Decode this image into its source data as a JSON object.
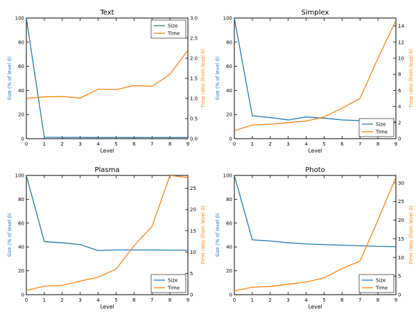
{
  "chart_data": [
    {
      "type": "line",
      "title": "Text",
      "xlabel": "Level",
      "ylabel": "Size (% of level 0)",
      "y2label": "Time ratio (from level 0)",
      "x": [
        0,
        1,
        2,
        3,
        4,
        5,
        6,
        7,
        8,
        9
      ],
      "xlim": [
        0,
        9
      ],
      "ylim": [
        0,
        100
      ],
      "y2lim": [
        0,
        3.0
      ],
      "xticks": [
        "0",
        "1",
        "2",
        "3",
        "4",
        "5",
        "6",
        "7",
        "8",
        "9"
      ],
      "yticks": [
        "0",
        "20",
        "40",
        "60",
        "80",
        "100"
      ],
      "y2ticks": [
        "0.0",
        "0.5",
        "1.0",
        "1.5",
        "2.0",
        "2.5",
        "3.0"
      ],
      "legend": "top-right",
      "series": [
        {
          "name": "Size",
          "axis": "left",
          "color": "#1f77b4",
          "values": [
            100,
            1.2,
            1.1,
            1.1,
            1.0,
            1.0,
            1.0,
            1.0,
            1.0,
            1.0
          ]
        },
        {
          "name": "Time",
          "axis": "right",
          "color": "#ff7f0e",
          "values": [
            1.0,
            1.04,
            1.05,
            1.01,
            1.23,
            1.22,
            1.32,
            1.3,
            1.6,
            2.2
          ]
        }
      ]
    },
    {
      "type": "line",
      "title": "Simplex",
      "xlabel": "Level",
      "ylabel": "Size (% of level 0)",
      "y2label": "Time ratio (from level 0)",
      "x": [
        0,
        1,
        2,
        3,
        4,
        5,
        6,
        7,
        8,
        9
      ],
      "xlim": [
        0,
        9
      ],
      "ylim": [
        0,
        100
      ],
      "y2lim": [
        0,
        15
      ],
      "xticks": [
        "0",
        "1",
        "2",
        "3",
        "4",
        "5",
        "6",
        "7",
        "8",
        "9"
      ],
      "yticks": [
        "0",
        "20",
        "40",
        "60",
        "80",
        "100"
      ],
      "y2ticks": [
        "0",
        "2",
        "4",
        "6",
        "8",
        "10",
        "12",
        "14"
      ],
      "legend": "bottom-right",
      "series": [
        {
          "name": "Size",
          "axis": "left",
          "color": "#1f77b4",
          "values": [
            100,
            19,
            17.5,
            15.5,
            18,
            17,
            15.5,
            15,
            14.3,
            14
          ]
        },
        {
          "name": "Time",
          "axis": "right",
          "color": "#ff7f0e",
          "values": [
            1.0,
            1.7,
            1.8,
            2.0,
            2.2,
            2.7,
            3.8,
            5.0,
            10.0,
            14.7
          ]
        }
      ]
    },
    {
      "type": "line",
      "title": "Plasma",
      "xlabel": "Level",
      "ylabel": "Size (% of level 0)",
      "y2label": "Time ratio (from level 0)",
      "x": [
        0,
        1,
        2,
        3,
        4,
        5,
        6,
        7,
        8,
        9
      ],
      "xlim": [
        0,
        9
      ],
      "ylim": [
        0,
        100
      ],
      "y2lim": [
        0,
        28
      ],
      "xticks": [
        "0",
        "1",
        "2",
        "3",
        "4",
        "5",
        "6",
        "7",
        "8",
        "9"
      ],
      "yticks": [
        "0",
        "20",
        "40",
        "60",
        "80",
        "100"
      ],
      "y2ticks": [
        "0",
        "5",
        "10",
        "15",
        "20",
        "25"
      ],
      "legend": "bottom-right",
      "series": [
        {
          "name": "Size",
          "axis": "left",
          "color": "#1f77b4",
          "values": [
            100,
            44.5,
            43.5,
            42,
            37,
            37.5,
            37.5,
            37.5,
            37.3,
            37.2
          ]
        },
        {
          "name": "Time",
          "axis": "right",
          "color": "#ff7f0e",
          "values": [
            1.0,
            2.0,
            2.2,
            3.2,
            4.1,
            6.0,
            11.5,
            16.0,
            28.0,
            27.5
          ]
        }
      ]
    },
    {
      "type": "line",
      "title": "Photo",
      "xlabel": "Level",
      "ylabel": "Size (% of level 0)",
      "y2label": "Time ratio (from level 0)",
      "x": [
        0,
        1,
        2,
        3,
        4,
        5,
        6,
        7,
        8,
        9
      ],
      "xlim": [
        0,
        9
      ],
      "ylim": [
        0,
        100
      ],
      "y2lim": [
        0,
        32
      ],
      "xticks": [
        "0",
        "1",
        "2",
        "3",
        "4",
        "5",
        "6",
        "7",
        "8",
        "9"
      ],
      "yticks": [
        "0",
        "20",
        "40",
        "60",
        "80",
        "100"
      ],
      "y2ticks": [
        "0",
        "5",
        "10",
        "15",
        "20",
        "25",
        "30"
      ],
      "legend": "bottom-right",
      "series": [
        {
          "name": "Size",
          "axis": "left",
          "color": "#1f77b4",
          "values": [
            100,
            46,
            45,
            43.5,
            42.5,
            42,
            41.5,
            41,
            40.5,
            40.3
          ]
        },
        {
          "name": "Time",
          "axis": "right",
          "color": "#ff7f0e",
          "values": [
            1.0,
            2.0,
            2.2,
            2.8,
            3.4,
            4.5,
            7.0,
            9.0,
            20.0,
            31.5
          ]
        }
      ]
    }
  ]
}
